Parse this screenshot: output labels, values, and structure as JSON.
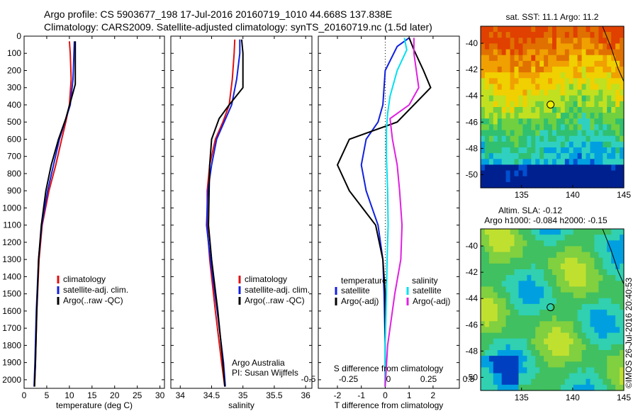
{
  "header": {
    "line1": "Argo profile: CS 5903677_198 17-Jul-2016 20160719_1010 44.668S 137.838E",
    "line2": "Climatology: CARS2009. Satellite-adjusted climatology: synTS_20160719.nc (1.5d later)"
  },
  "colors": {
    "climatology": "#e01010",
    "satellite": "#1020e0",
    "argo": "#000000",
    "sat_salinity": "#00e0f0",
    "argo_salinity": "#e020e0"
  },
  "chart_data": [
    {
      "type": "line",
      "name": "temperature",
      "xlabel": "temperature (deg C)",
      "ylabel": "",
      "xlim": [
        0,
        31
      ],
      "ylim": [
        2050,
        0
      ],
      "y_reversed": true,
      "xticks": [
        0,
        5,
        10,
        15,
        20,
        25,
        30
      ],
      "yticks": [
        0,
        100,
        200,
        300,
        400,
        500,
        600,
        700,
        800,
        900,
        1000,
        1100,
        1200,
        1300,
        1400,
        1500,
        1600,
        1700,
        1800,
        1900,
        2000
      ],
      "legend": [
        "climatology",
        "satellite-adj. clim.",
        "Argo(..raw -QC)"
      ],
      "series": [
        {
          "name": "climatology",
          "color": "#e01010",
          "x": [
            10.0,
            10.2,
            10.4,
            10.0,
            9.2,
            8.3,
            7.0,
            5.5,
            4.0,
            3.3,
            2.8,
            2.5,
            2.3
          ],
          "y": [
            30,
            100,
            250,
            400,
            500,
            600,
            750,
            900,
            1100,
            1300,
            1600,
            1900,
            2040
          ]
        },
        {
          "name": "satellite-adj. clim.",
          "color": "#1020e0",
          "x": [
            11.1,
            11.0,
            10.8,
            10.2,
            9.0,
            7.8,
            6.5,
            5.2,
            3.9,
            3.2,
            2.7,
            2.4,
            2.2
          ],
          "y": [
            30,
            100,
            250,
            400,
            500,
            600,
            750,
            900,
            1100,
            1300,
            1600,
            1900,
            2040
          ]
        },
        {
          "name": "Argo(..raw -QC)",
          "color": "#000000",
          "x": [
            11.3,
            11.3,
            11.3,
            10.9,
            9.2,
            7.6,
            6.0,
            4.8,
            3.8,
            3.2,
            2.8,
            2.5,
            2.3
          ],
          "y": [
            30,
            100,
            280,
            320,
            480,
            600,
            750,
            900,
            1100,
            1300,
            1600,
            1900,
            2040
          ]
        }
      ]
    },
    {
      "type": "line",
      "name": "salinity",
      "xlabel": "salinity",
      "xlim": [
        33.85,
        36.1
      ],
      "ylim": [
        2050,
        0
      ],
      "xticks": [
        34,
        34.5,
        35,
        35.5,
        36
      ],
      "legend": [
        "climatology",
        "satellite-adj. clim.",
        "Argo(..raw -QC)"
      ],
      "annotations": [
        "Argo Australia",
        "PI: Susan Wijffels"
      ],
      "series": [
        {
          "name": "climatology",
          "color": "#e01010",
          "x": [
            34.87,
            34.86,
            34.83,
            34.78,
            34.68,
            34.56,
            34.47,
            34.43,
            34.43,
            34.47,
            34.56,
            34.66,
            34.71
          ],
          "y": [
            20,
            100,
            250,
            400,
            500,
            600,
            750,
            900,
            1100,
            1300,
            1600,
            1900,
            2040
          ]
        },
        {
          "name": "satellite-adj. clim.",
          "color": "#1020e0",
          "x": [
            34.95,
            34.95,
            34.9,
            34.82,
            34.7,
            34.58,
            34.5,
            34.44,
            34.42,
            34.48,
            34.59,
            34.69,
            34.72
          ],
          "y": [
            20,
            100,
            250,
            400,
            500,
            600,
            750,
            900,
            1100,
            1300,
            1600,
            1900,
            2040
          ]
        },
        {
          "name": "Argo(..raw -QC)",
          "color": "#000000",
          "x": [
            34.98,
            35.0,
            35.0,
            34.78,
            34.62,
            34.5,
            34.47,
            34.46,
            34.45,
            34.5,
            34.6,
            34.68,
            34.71
          ],
          "y": [
            20,
            100,
            300,
            400,
            480,
            600,
            750,
            900,
            1100,
            1300,
            1600,
            1900,
            2040
          ]
        }
      ]
    },
    {
      "type": "line",
      "name": "differences",
      "xlabel": "T difference from climatology",
      "xlabel_top": "S difference from climatology",
      "xlim": [
        -2.8,
        3.1
      ],
      "ylim": [
        2050,
        0
      ],
      "xticks": [
        -2,
        -1,
        0,
        1,
        2
      ],
      "xticks_top": [
        -0.5,
        -0.25,
        0,
        0.25,
        0.5
      ],
      "xtick_labels_top": [
        "-0.5",
        "-0.25",
        "0",
        "0.25",
        "0.5"
      ],
      "legend_temperature": {
        "title": "temperature",
        "items": [
          "satellite",
          "Argo(-adj)"
        ]
      },
      "legend_salinity": {
        "title": "salinity",
        "items": [
          "satellite",
          "Argo(-adj)"
        ]
      },
      "series": [
        {
          "name": "temperature satellite",
          "color": "#1020e0",
          "x": [
            1.0,
            0.5,
            0.0,
            -0.1,
            -0.3,
            -0.8,
            -1.0,
            -0.8,
            -0.3,
            -0.1,
            -0.05,
            0.0,
            0.0
          ],
          "y": [
            10,
            60,
            200,
            400,
            500,
            600,
            750,
            900,
            1100,
            1300,
            1500,
            1800,
            2040
          ]
        },
        {
          "name": "temperature Argo(-adj)",
          "color": "#000000",
          "x": [
            1.0,
            1.2,
            1.6,
            1.9,
            0.5,
            -1.5,
            -2.0,
            -1.5,
            -0.4,
            -0.1,
            0.0,
            0.0,
            0.0
          ],
          "y": [
            10,
            80,
            200,
            300,
            500,
            600,
            750,
            900,
            1100,
            1300,
            1500,
            1800,
            2040
          ]
        },
        {
          "name": "salinity satellite",
          "color": "#00e0f0",
          "x": [
            0.8,
            0.9,
            0.5,
            0.2,
            0.1,
            0.05,
            0.05,
            0.1,
            0.12,
            0.08,
            0.05,
            0.0,
            0.0
          ],
          "y": [
            10,
            80,
            200,
            350,
            450,
            550,
            700,
            900,
            1100,
            1300,
            1500,
            1800,
            2040
          ]
        },
        {
          "name": "salinity Argo(-adj)",
          "color": "#e020e0",
          "x": [
            1.2,
            1.2,
            1.4,
            1.0,
            0.2,
            0.3,
            0.5,
            0.6,
            0.7,
            0.65,
            0.4,
            0.1,
            0.0
          ],
          "y": [
            10,
            100,
            300,
            400,
            480,
            600,
            750,
            900,
            1100,
            1300,
            1500,
            1800,
            2040
          ]
        }
      ]
    },
    {
      "type": "heatmap",
      "name": "sst_map",
      "title": "sat. SST: 11.1 Argo: 11.2",
      "xlim": [
        131,
        145
      ],
      "ylim": [
        -51,
        -38.7
      ],
      "xticks": [
        135,
        140,
        145
      ],
      "yticks": [
        -40,
        -42,
        -44,
        -46,
        -48,
        -50
      ],
      "marker": {
        "lon": 137.838,
        "lat": -44.668
      }
    },
    {
      "type": "heatmap",
      "name": "sla_map",
      "title": "Altim. SLA: -0.12",
      "subtitle": "Argo h1000: -0.084 h2000: -0.15",
      "xlim": [
        131,
        145
      ],
      "ylim": [
        -51,
        -38.7
      ],
      "xticks": [
        135,
        140,
        145
      ],
      "yticks": [
        -40,
        -42,
        -44,
        -46,
        -48,
        -50
      ],
      "marker": {
        "lon": 137.838,
        "lat": -44.668
      }
    }
  ],
  "footer": {
    "credit": "©IMOS 26-Jul-2016 20:40:53"
  }
}
